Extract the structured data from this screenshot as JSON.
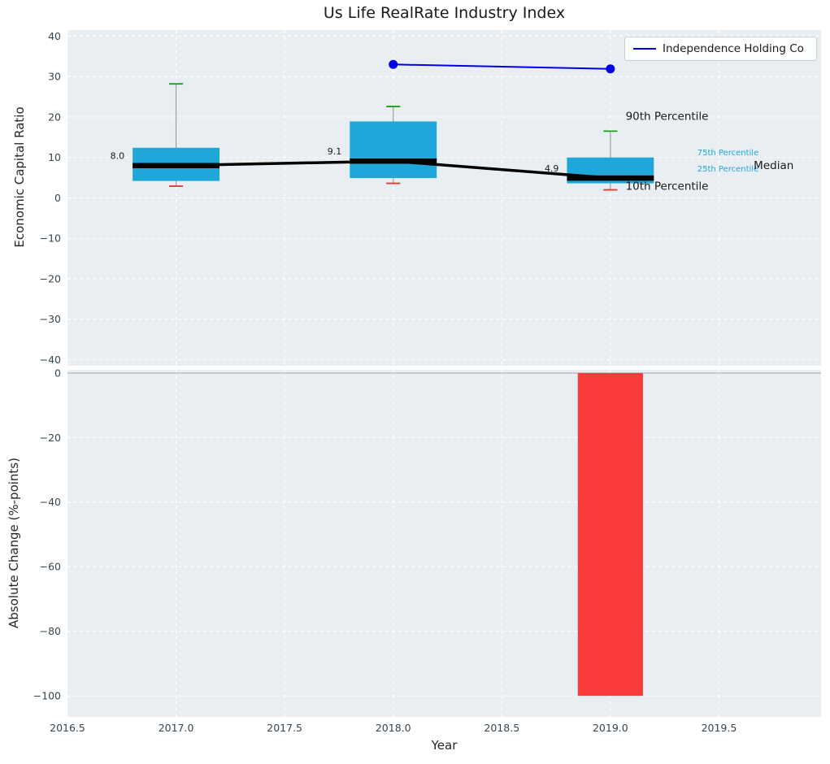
{
  "figure": {
    "background": "#ffffff",
    "panel_background": "#e9eef2",
    "grid_color": "#ffffff",
    "tick_color": "#36454f"
  },
  "x_axis": {
    "label": "Year",
    "xlim": [
      2016.5,
      2019.97
    ],
    "xticks": [
      2016.5,
      2017.0,
      2017.5,
      2018.0,
      2018.5,
      2019.0,
      2019.5
    ],
    "xtick_labels": [
      "2016.5",
      "2017.0",
      "2017.5",
      "2018.0",
      "2018.5",
      "2019.0",
      "2019.5"
    ]
  },
  "legend": {
    "label": "Independence Holding Co",
    "line_color": "#0000e6"
  },
  "chart_data": [
    {
      "type": "boxplot",
      "name": "economic-capital-ratio-panel",
      "title": "Us Life RealRate Industry Index",
      "ylabel": "Economic Capital Ratio",
      "ylim": [
        41.5,
        -41.5
      ],
      "yticks": [
        40,
        30,
        20,
        10,
        0,
        -10,
        -20,
        -30,
        -40
      ],
      "ytick_labels": [
        "40",
        "30",
        "20",
        "10",
        "0",
        "−10",
        "−20",
        "−30",
        "−40"
      ],
      "grid": true,
      "box_width": 0.4,
      "cap_half_width": 0.032,
      "box_color": "#1fa7d9",
      "whisker_color": "#9aa0a6",
      "cap90_color": "#18a01b",
      "cap10_color": "#e53935",
      "median_color": "#000000",
      "boxes": [
        {
          "x": 2017,
          "p10": 2.9,
          "q25": 4.2,
          "median": 8.0,
          "q75": 12.4,
          "p90": 28.2,
          "label": "8.0"
        },
        {
          "x": 2018,
          "p10": 3.6,
          "q25": 4.9,
          "median": 9.1,
          "q75": 18.9,
          "p90": 22.6,
          "label": "9.1"
        },
        {
          "x": 2019,
          "p10": 2.0,
          "q25": 3.6,
          "median": 4.9,
          "q75": 10.0,
          "p90": 16.5,
          "label": "4.9"
        }
      ],
      "median_series": {
        "x": [
          2017,
          2018,
          2019
        ],
        "y": [
          8.0,
          9.1,
          4.9
        ]
      },
      "company_series": {
        "name": "Independence Holding Co",
        "color": "#0000e6",
        "points": [
          {
            "x": 2018,
            "y": 33.0
          },
          {
            "x": 2019,
            "y": 31.9
          }
        ]
      },
      "annotations": [
        {
          "text": "90th Percentile",
          "x": 2019.07,
          "y": 20.2,
          "color": "#1a1a1a",
          "size": 13.5
        },
        {
          "text": "75th Percentile",
          "x": 2019.4,
          "y": 11.3,
          "color": "#1fa7d9",
          "size": 10
        },
        {
          "text": "25th Percentile",
          "x": 2019.4,
          "y": 7.2,
          "color": "#1fa7d9",
          "size": 10
        },
        {
          "text": "Median",
          "x": 2019.66,
          "y": 8.1,
          "color": "#1a1a1a",
          "size": 13.5
        },
        {
          "text": "10th Percentile",
          "x": 2019.07,
          "y": 3.0,
          "color": "#1a1a1a",
          "size": 13.5
        }
      ]
    },
    {
      "type": "bar",
      "name": "absolute-change-panel",
      "ylabel": "Absolute Change (%-points)",
      "ylim": [
        1.0,
        -106.5
      ],
      "yticks": [
        0,
        -20,
        -40,
        -60,
        -80,
        -100
      ],
      "ytick_labels": [
        "0",
        "−20",
        "−40",
        "−60",
        "−80",
        "−100"
      ],
      "grid": true,
      "zero_line_color": "#b3b3b3",
      "bar_width": 0.3,
      "bars": [
        {
          "x": 2019,
          "value": -100.0,
          "color": "#fb3b3b"
        }
      ]
    }
  ]
}
